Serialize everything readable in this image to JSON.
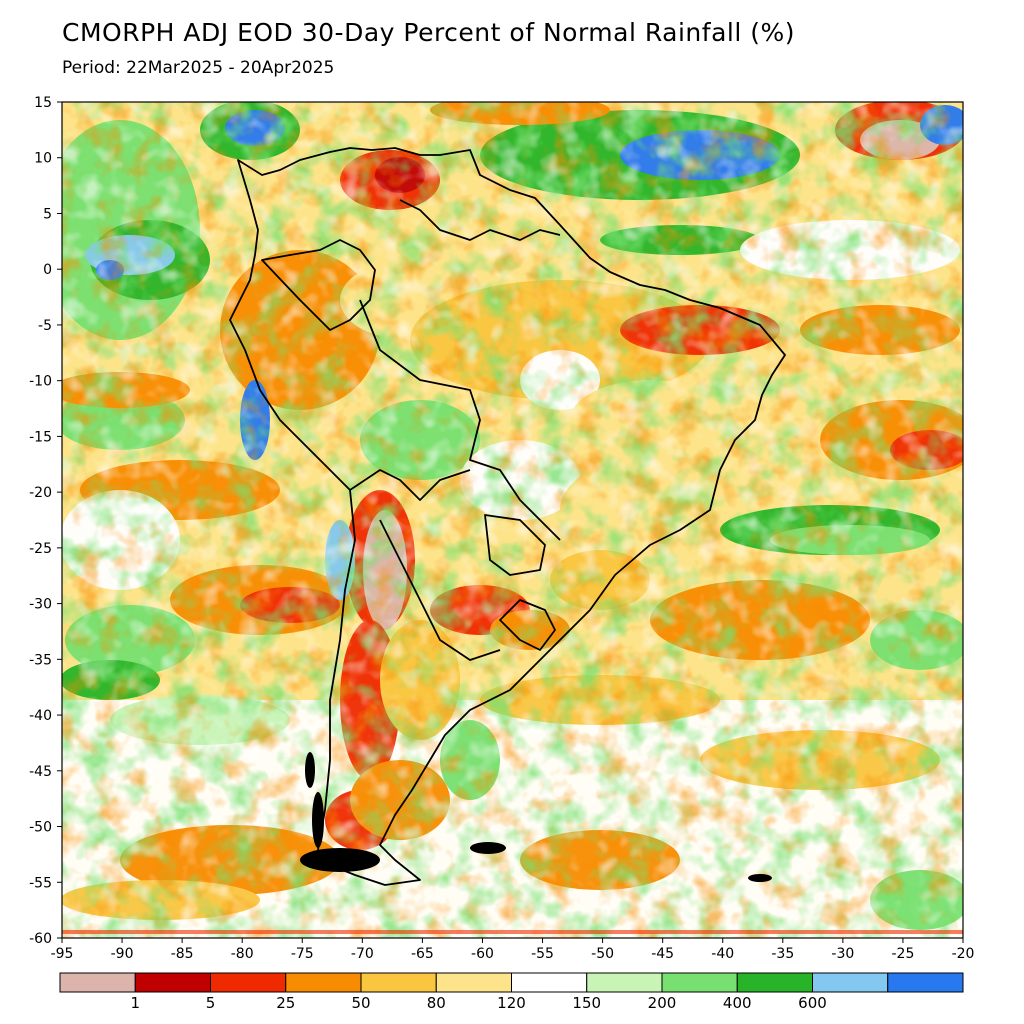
{
  "title": "CMORPH ADJ EOD 30-Day Percent of Normal Rainfall (%)",
  "subtitle": "Period: 22Mar2025 - 20Apr2025",
  "map": {
    "lon_range": [
      -95,
      -20
    ],
    "lat_range": [
      -60,
      15
    ],
    "lon_ticks": [
      {
        "value": -95,
        "label": "-95"
      },
      {
        "value": -90,
        "label": "-90"
      },
      {
        "value": -85,
        "label": "-85"
      },
      {
        "value": -80,
        "label": "-80"
      },
      {
        "value": -75,
        "label": "-75"
      },
      {
        "value": -70,
        "label": "-70"
      },
      {
        "value": -65,
        "label": "-65"
      },
      {
        "value": -60,
        "label": "-60"
      },
      {
        "value": -55,
        "label": "-55"
      },
      {
        "value": -50,
        "label": "-50"
      },
      {
        "value": -45,
        "label": "-45"
      },
      {
        "value": -40,
        "label": "-40"
      },
      {
        "value": -35,
        "label": "-35"
      },
      {
        "value": -30,
        "label": "-30"
      },
      {
        "value": -25,
        "label": "-25"
      },
      {
        "value": -20,
        "label": "-20"
      }
    ],
    "lat_ticks": [
      {
        "value": 15,
        "label": "15"
      },
      {
        "value": 10,
        "label": "10"
      },
      {
        "value": 5,
        "label": "5"
      },
      {
        "value": 0,
        "label": "0"
      },
      {
        "value": -5,
        "label": "-5"
      },
      {
        "value": -10,
        "label": "-10"
      },
      {
        "value": -15,
        "label": "-15"
      },
      {
        "value": -20,
        "label": "-20"
      },
      {
        "value": -25,
        "label": "-25"
      },
      {
        "value": -30,
        "label": "-30"
      },
      {
        "value": -35,
        "label": "-35"
      },
      {
        "value": -40,
        "label": "-40"
      },
      {
        "value": -45,
        "label": "-45"
      },
      {
        "value": -50,
        "label": "-50"
      },
      {
        "value": -55,
        "label": "-55"
      },
      {
        "value": -60,
        "label": "-60"
      }
    ]
  },
  "colorbar": {
    "colors": [
      "#dcb4ac",
      "#c00000",
      "#f02a00",
      "#f88c00",
      "#fac640",
      "#fde48a",
      "#ffffff",
      "#c8f4b6",
      "#78e070",
      "#28b428",
      "#82c8f0",
      "#2878f0"
    ],
    "labels": [
      "1",
      "5",
      "25",
      "50",
      "80",
      "120",
      "150",
      "200",
      "400",
      "600"
    ]
  }
}
